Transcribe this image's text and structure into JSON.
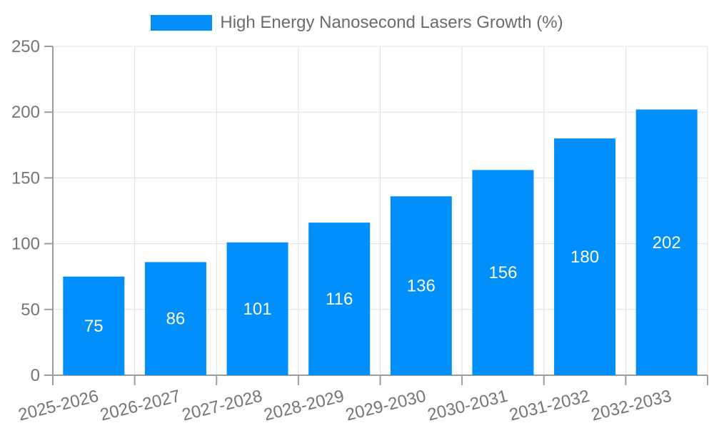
{
  "legend": {
    "label": "High Energy Nanosecond Lasers Growth (%)"
  },
  "chart_data": {
    "type": "bar",
    "title": "High Energy Nanosecond Lasers Growth (%)",
    "categories": [
      "2025-2026",
      "2026-2027",
      "2027-2028",
      "2028-2029",
      "2029-2030",
      "2030-2031",
      "2031-2032",
      "2032-2033"
    ],
    "values": [
      75,
      86,
      101,
      116,
      136,
      156,
      180,
      202
    ],
    "xlabel": "",
    "ylabel": "",
    "ylim": [
      0,
      250
    ],
    "ytick_step": 50,
    "yticks": [
      0,
      50,
      100,
      150,
      200,
      250
    ],
    "grid": true,
    "legend_position": "top",
    "value_labels_inside_bars": true,
    "x_label_rotation_deg": -14,
    "colors": {
      "bar": "#008FFB",
      "value_label": "#FFFFFF",
      "axis_label": "#757575",
      "legend_text": "#6B6B6B",
      "grid_line": "#E0E0E0",
      "axis_line": "#9E9E9E",
      "background": "#FFFFFF"
    }
  }
}
